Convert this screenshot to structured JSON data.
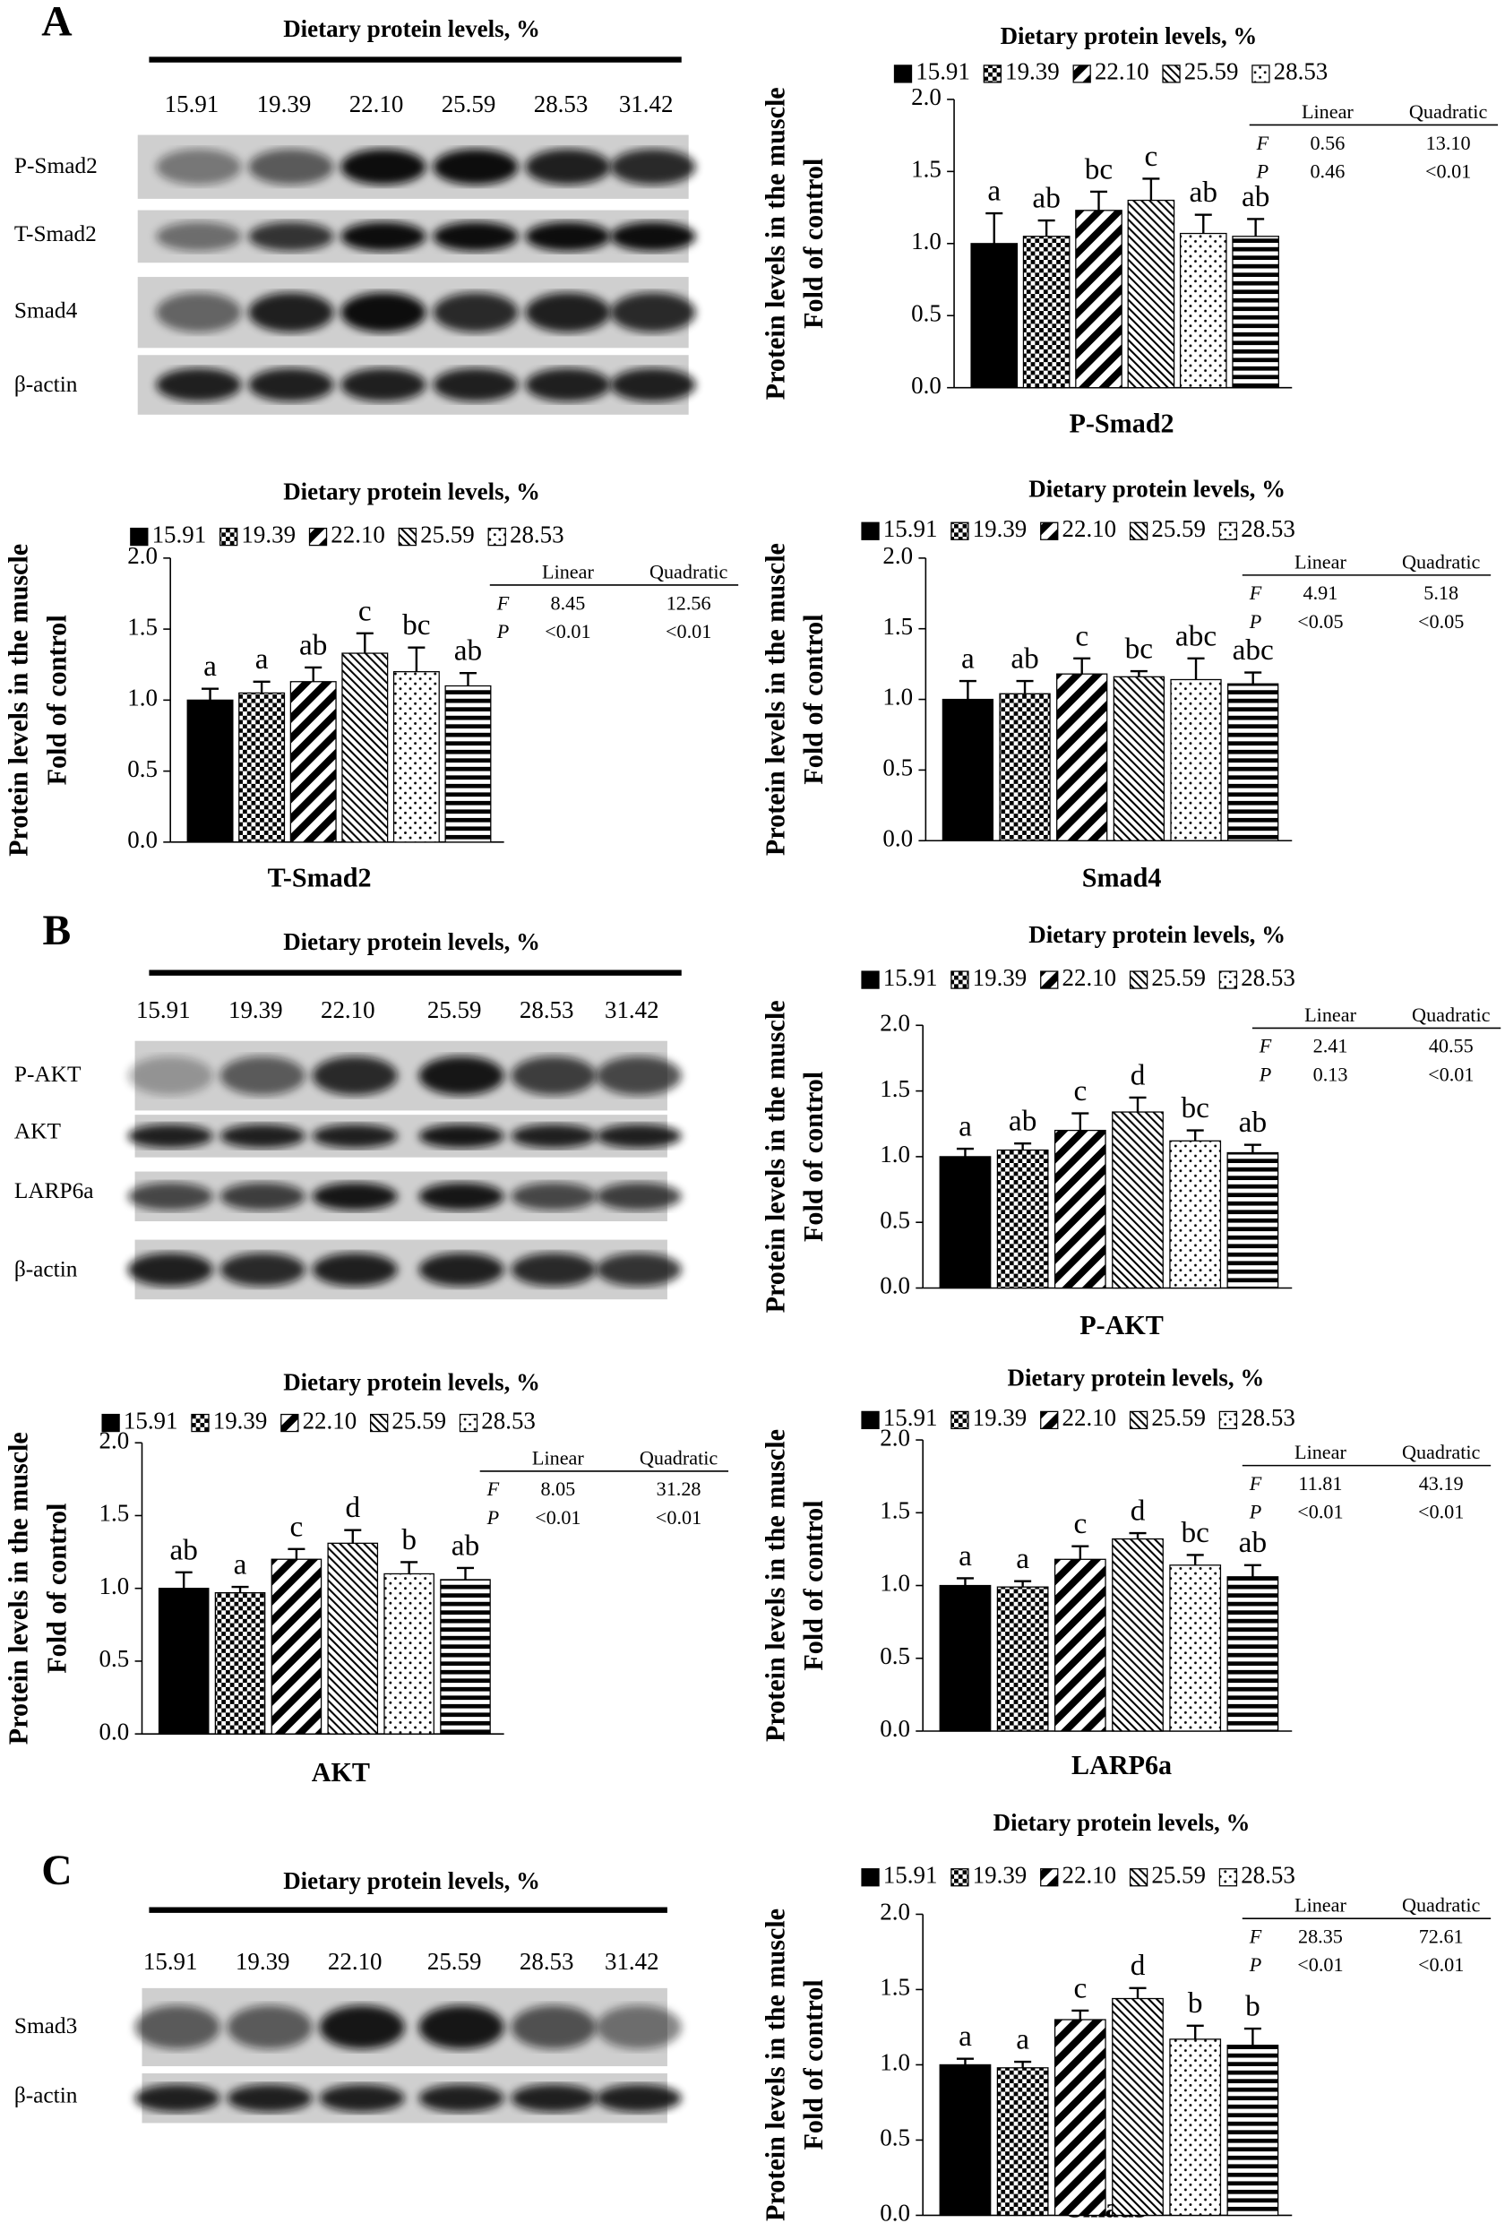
{
  "chart_data": [
    {
      "type": "bar",
      "title": "Dietary protein levels, %",
      "x_label": "P-Smad2",
      "y_label": [
        "Protein levels in the muscle",
        "Fold of control"
      ],
      "categories": [
        "15.91",
        "19.39",
        "22.10",
        "25.59",
        "28.53",
        null
      ],
      "values": [
        1.0,
        1.05,
        1.23,
        1.3,
        1.07,
        1.05
      ],
      "errors": [
        0.21,
        0.11,
        0.13,
        0.15,
        0.13,
        0.12
      ],
      "letters": [
        "a",
        "ab",
        "bc",
        "c",
        "ab",
        "ab"
      ],
      "ylim": [
        0,
        2
      ],
      "yticks": [
        {
          "value": 0,
          "label": "0.0"
        },
        {
          "value": 0.5,
          "label": "0.5"
        },
        {
          "value": 1,
          "label": "1.0"
        },
        {
          "value": 1.5,
          "label": "1.5"
        },
        {
          "value": 2,
          "label": "2.0"
        }
      ],
      "stats": {
        "header": [
          "Linear",
          "Quadratic"
        ],
        "rows": [
          [
            "F",
            "0.56",
            "13.10"
          ],
          [
            "P",
            "0.46",
            "<0.01"
          ]
        ]
      }
    },
    {
      "type": "bar",
      "title": "Dietary protein levels, %",
      "x_label": "T-Smad2",
      "y_label": [
        "Protein levels in the muscle",
        "Fold of control"
      ],
      "categories": [
        "15.91",
        "19.39",
        "22.10",
        "25.59",
        "28.53",
        null
      ],
      "values": [
        1.0,
        1.05,
        1.13,
        1.33,
        1.2,
        1.1
      ],
      "errors": [
        0.08,
        0.08,
        0.1,
        0.14,
        0.17,
        0.09
      ],
      "letters": [
        "a",
        "a",
        "ab",
        "c",
        "bc",
        "ab"
      ],
      "ylim": [
        0,
        2
      ],
      "yticks": [
        {
          "value": 0,
          "label": "0.0"
        },
        {
          "value": 0.5,
          "label": "0.5"
        },
        {
          "value": 1,
          "label": "1.0"
        },
        {
          "value": 1.5,
          "label": "1.5"
        },
        {
          "value": 2,
          "label": "2.0"
        }
      ],
      "stats": {
        "header": [
          "Linear",
          "Quadratic"
        ],
        "rows": [
          [
            "F",
            "8.45",
            "12.56"
          ],
          [
            "P",
            "<0.01",
            "<0.01"
          ]
        ]
      }
    },
    {
      "type": "bar",
      "title": "Dietary protein levels, %",
      "x_label": "Smad4",
      "y_label": [
        "Protein levels in the muscle",
        "Fold of control"
      ],
      "categories": [
        "15.91",
        "19.39",
        "22.10",
        "25.59",
        "28.53",
        null
      ],
      "values": [
        1.0,
        1.04,
        1.18,
        1.16,
        1.14,
        1.11
      ],
      "errors": [
        0.13,
        0.09,
        0.11,
        0.04,
        0.15,
        0.08
      ],
      "letters": [
        "a",
        "ab",
        "c",
        "bc",
        "abc",
        "abc"
      ],
      "ylim": [
        0,
        2
      ],
      "yticks": [
        {
          "value": 0,
          "label": "0.0"
        },
        {
          "value": 0.5,
          "label": "0.5"
        },
        {
          "value": 1,
          "label": "1.0"
        },
        {
          "value": 1.5,
          "label": "1.5"
        },
        {
          "value": 2,
          "label": "2.0"
        }
      ],
      "stats": {
        "header": [
          "Linear",
          "Quadratic"
        ],
        "rows": [
          [
            "F",
            "4.91",
            "5.18"
          ],
          [
            "P",
            "<0.05",
            "<0.05"
          ]
        ]
      }
    },
    {
      "type": "bar",
      "title": "Dietary protein levels, %",
      "x_label": "P-AKT",
      "y_label": [
        "Protein levels in the muscle",
        "Fold of control"
      ],
      "categories": [
        "15.91",
        "19.39",
        "22.10",
        "25.59",
        "28.53",
        null
      ],
      "values": [
        1.0,
        1.05,
        1.2,
        1.34,
        1.12,
        1.03
      ],
      "errors": [
        0.06,
        0.05,
        0.13,
        0.11,
        0.08,
        0.06
      ],
      "letters": [
        "a",
        "ab",
        "c",
        "d",
        "bc",
        "ab"
      ],
      "ylim": [
        0,
        2
      ],
      "yticks": [
        {
          "value": 0,
          "label": "0.0"
        },
        {
          "value": 0.5,
          "label": "0.5"
        },
        {
          "value": 1,
          "label": "1.0"
        },
        {
          "value": 1.5,
          "label": "1.5"
        },
        {
          "value": 2,
          "label": "2.0"
        }
      ],
      "stats": {
        "header": [
          "Linear",
          "Quadratic"
        ],
        "rows": [
          [
            "F",
            "2.41",
            "40.55"
          ],
          [
            "P",
            "0.13",
            "<0.01"
          ]
        ]
      }
    },
    {
      "type": "bar",
      "title": "Dietary protein levels, %",
      "x_label": "AKT",
      "y_label": [
        "Protein levels in the muscle",
        "Fold of control"
      ],
      "categories": [
        "15.91",
        "19.39",
        "22.10",
        "25.59",
        "28.53",
        null
      ],
      "values": [
        1.0,
        0.97,
        1.2,
        1.31,
        1.1,
        1.06
      ],
      "errors": [
        0.11,
        0.04,
        0.07,
        0.09,
        0.08,
        0.08
      ],
      "letters": [
        "ab",
        "a",
        "c",
        "d",
        "b",
        "ab"
      ],
      "ylim": [
        0,
        2
      ],
      "yticks": [
        {
          "value": 0,
          "label": "0.0"
        },
        {
          "value": 0.5,
          "label": "0.5"
        },
        {
          "value": 1,
          "label": "1.0"
        },
        {
          "value": 1.5,
          "label": "1.5"
        },
        {
          "value": 2,
          "label": "2.0"
        }
      ],
      "stats": {
        "header": [
          "Linear",
          "Quadratic"
        ],
        "rows": [
          [
            "F",
            "8.05",
            "31.28"
          ],
          [
            "P",
            "<0.01",
            "<0.01"
          ]
        ]
      }
    },
    {
      "type": "bar",
      "title": "Dietary protein levels, %",
      "x_label": "LARP6a",
      "y_label": [
        "Protein levels in the muscle",
        "Fold of control"
      ],
      "categories": [
        "15.91",
        "19.39",
        "22.10",
        "25.59",
        "28.53",
        null
      ],
      "values": [
        1.0,
        0.99,
        1.18,
        1.32,
        1.14,
        1.06
      ],
      "errors": [
        0.05,
        0.04,
        0.09,
        0.04,
        0.07,
        0.08
      ],
      "letters": [
        "a",
        "a",
        "c",
        "d",
        "bc",
        "ab"
      ],
      "ylim": [
        0,
        2
      ],
      "yticks": [
        {
          "value": 0,
          "label": "0.0"
        },
        {
          "value": 0.5,
          "label": "0.5"
        },
        {
          "value": 1,
          "label": "1.0"
        },
        {
          "value": 1.5,
          "label": "1.5"
        },
        {
          "value": 2,
          "label": "2.0"
        }
      ],
      "stats": {
        "header": [
          "Linear",
          "Quadratic"
        ],
        "rows": [
          [
            "F",
            "11.81",
            "43.19"
          ],
          [
            "P",
            "<0.01",
            "<0.01"
          ]
        ]
      }
    },
    {
      "type": "bar",
      "title": "Dietary protein levels, %",
      "x_label": "Smad3",
      "y_label": [
        "Protein levels in the muscle",
        "Fold of control"
      ],
      "categories": [
        "15.91",
        "19.39",
        "22.10",
        "25.59",
        "28.53",
        null
      ],
      "values": [
        1.0,
        0.98,
        1.3,
        1.44,
        1.17,
        1.13
      ],
      "errors": [
        0.04,
        0.04,
        0.06,
        0.07,
        0.09,
        0.11
      ],
      "letters": [
        "a",
        "a",
        "c",
        "d",
        "b",
        "b"
      ],
      "ylim": [
        0,
        2
      ],
      "yticks": [
        {
          "value": 0,
          "label": "0.0"
        },
        {
          "value": 0.5,
          "label": "0.5"
        },
        {
          "value": 1,
          "label": "1.0"
        },
        {
          "value": 1.5,
          "label": "1.5"
        },
        {
          "value": 2,
          "label": "2.0"
        }
      ],
      "stats": {
        "header": [
          "Linear",
          "Quadratic"
        ],
        "rows": [
          [
            "F",
            "28.35",
            "72.61"
          ],
          [
            "P",
            "<0.01",
            "<0.01"
          ]
        ]
      }
    }
  ],
  "blots": [
    {
      "panel": "A",
      "title": "Dietary protein levels, %",
      "lanes": [
        "15.91",
        "19.39",
        "22.10",
        "25.59",
        "28.53",
        "31.42"
      ],
      "rows": [
        "P-Smad2",
        "T-Smad2",
        "Smad4",
        "β-actin"
      ]
    },
    {
      "panel": "B",
      "title": "Dietary protein levels, %",
      "lanes": [
        "15.91",
        "19.39",
        "22.10",
        "25.59",
        "28.53",
        "31.42"
      ],
      "rows": [
        "P-AKT",
        "AKT",
        "LARP6a",
        "β-actin"
      ]
    },
    {
      "panel": "C",
      "title": "Dietary protein levels, %",
      "lanes": [
        "15.91",
        "19.39",
        "22.10",
        "25.59",
        "28.53",
        "31.42"
      ],
      "rows": [
        "Smad3",
        "β-actin"
      ]
    }
  ]
}
